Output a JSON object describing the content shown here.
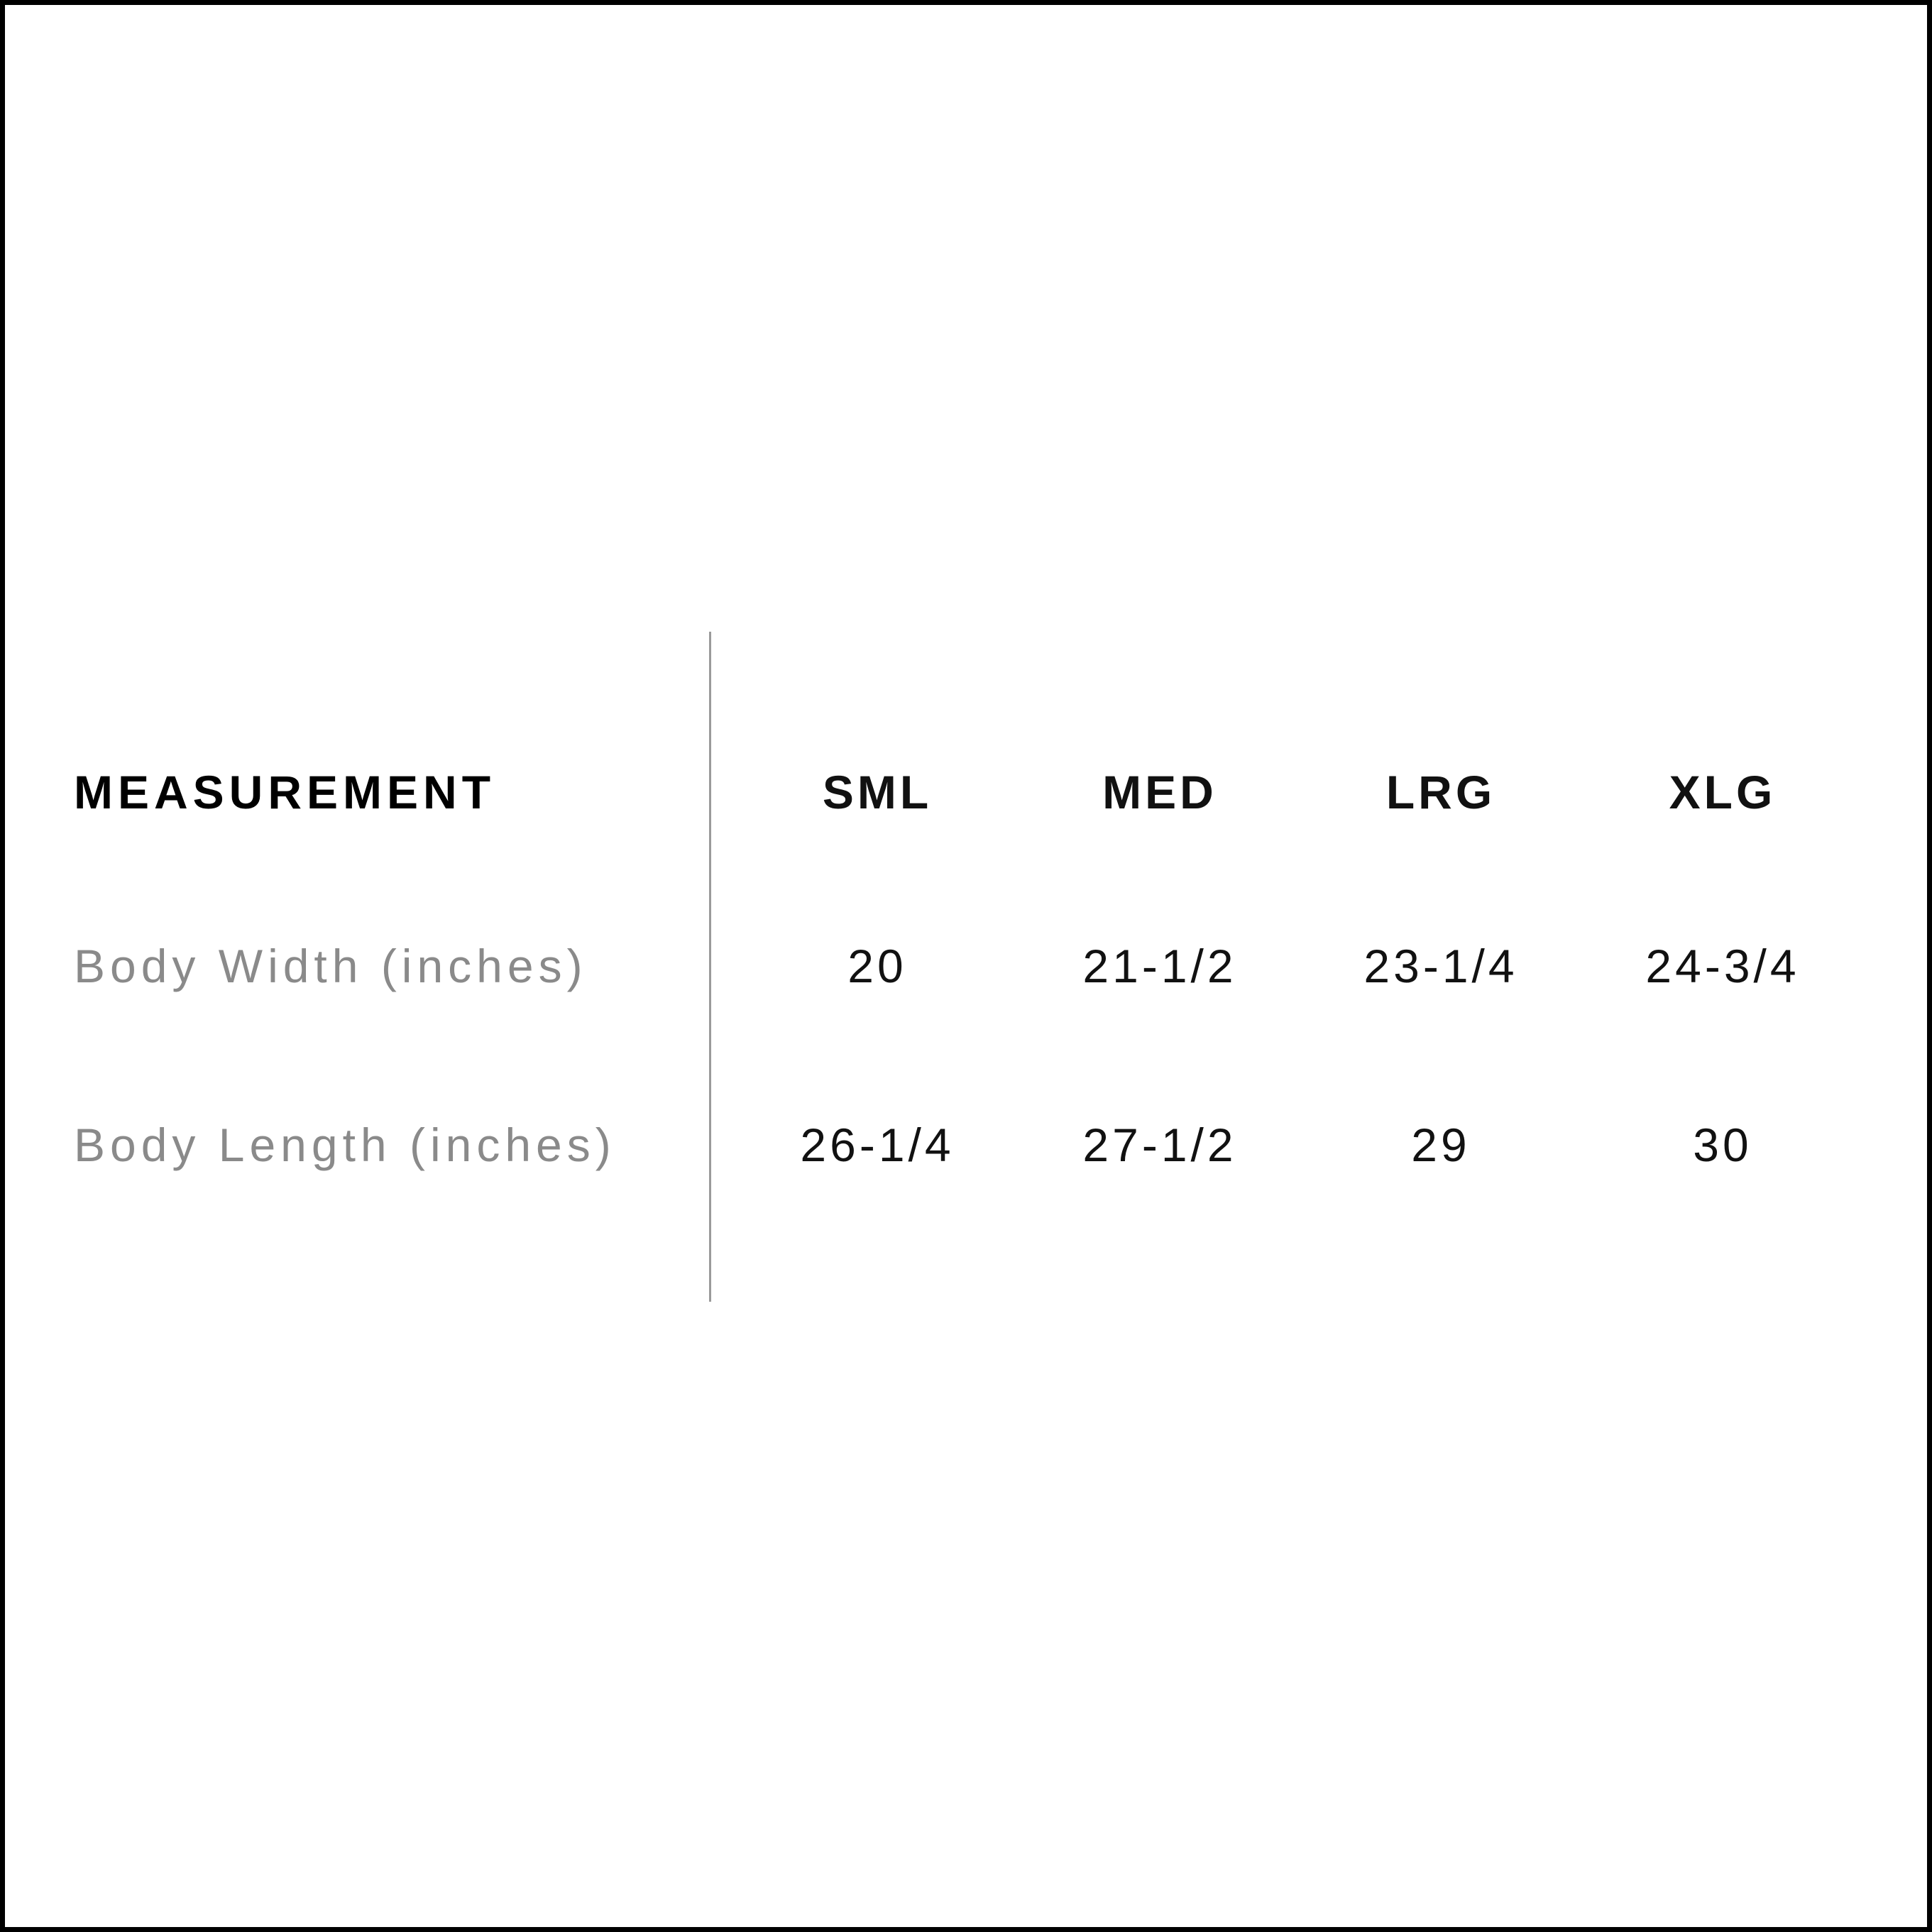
{
  "table": {
    "header_label": "MEASUREMENT",
    "sizes": [
      "SML",
      "MED",
      "LRG",
      "XLG"
    ],
    "rows": [
      {
        "label": "Body Width (inches)",
        "values": [
          "20",
          "21-1/2",
          "23-1/4",
          "24-3/4"
        ]
      },
      {
        "label": "Body Length (inches)",
        "values": [
          "26-1/4",
          "27-1/2",
          "29",
          "30"
        ]
      }
    ]
  },
  "colors": {
    "header": "#000000",
    "label": "#8a8a8a",
    "value": "#111111",
    "divider": "#9a9a9a",
    "border": "#000000"
  }
}
